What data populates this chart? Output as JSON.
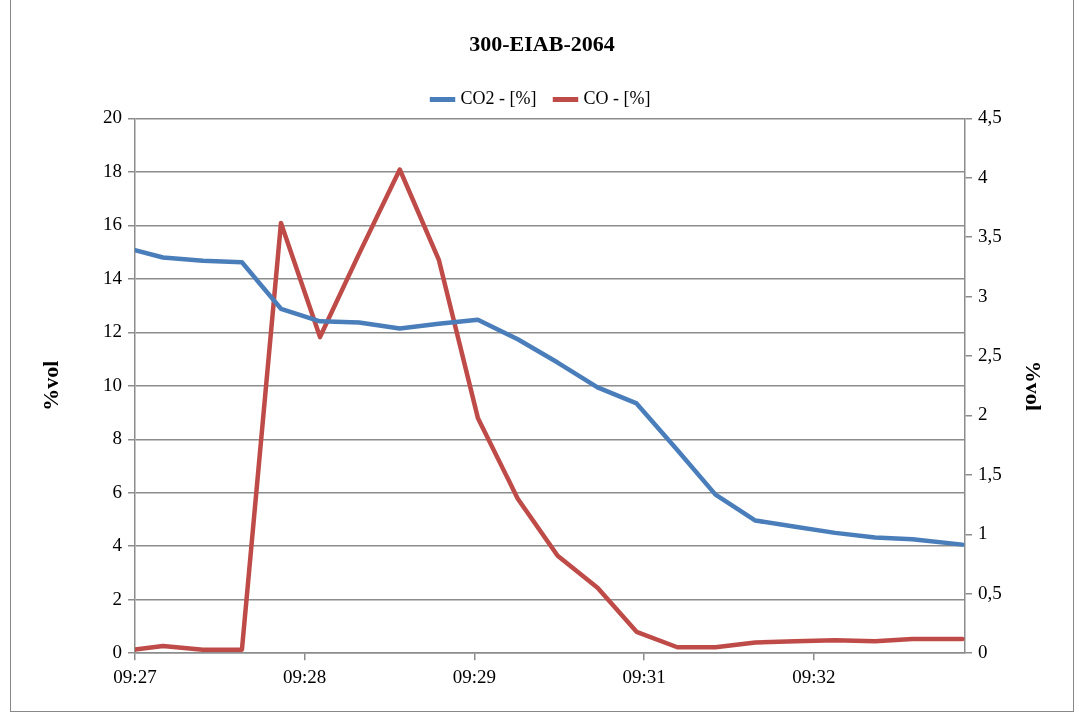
{
  "chart_data": {
    "type": "line",
    "title": "300-EIAB-2064",
    "ylabel": "%vol",
    "y2label": "%vol",
    "x": [
      9.45,
      9.4533,
      9.458,
      9.4626,
      9.4672,
      9.4718,
      9.4764,
      9.4812,
      9.4858,
      9.4904,
      9.4951,
      9.4998,
      9.5045,
      9.5091,
      9.5139,
      9.5184,
      9.5231,
      9.5278,
      9.5325,
      9.5372,
      9.5416,
      9.5475
    ],
    "series": [
      {
        "name": "CO2 - [%]",
        "color": "#4a7ebb",
        "values": [
          15.07,
          14.8,
          14.68,
          14.62,
          12.88,
          12.41,
          12.37,
          12.14,
          12.32,
          12.47,
          11.74,
          10.87,
          9.94,
          9.34,
          7.6,
          5.93,
          4.96,
          4.73,
          4.5,
          4.33,
          4.26,
          4.06
        ]
      },
      {
        "name": "CO - [%]",
        "color": "#be4b48",
        "axis": "y2",
        "values": [
          0.03,
          0.06,
          0.03,
          0.03,
          3.62,
          2.66,
          3.36,
          4.07,
          3.31,
          1.98,
          1.3,
          0.82,
          0.55,
          0.18,
          0.05,
          0.05,
          0.09,
          0.1,
          0.11,
          0.1,
          0.12,
          0.12
        ]
      }
    ],
    "xlim": [
      9.45,
      9.5478
    ],
    "xticks": [
      {
        "value": 9.45,
        "label": "09:27"
      },
      {
        "value": 9.47,
        "label": "09:28"
      },
      {
        "value": 9.49,
        "label": "09:29"
      },
      {
        "value": 9.51,
        "label": "09:31"
      },
      {
        "value": 9.53,
        "label": "09:32"
      }
    ],
    "ylim": [
      0,
      20
    ],
    "yticks": [
      0,
      2,
      4,
      6,
      8,
      10,
      12,
      14,
      16,
      18,
      20
    ],
    "y2lim": [
      0,
      4.5
    ],
    "y2ticks": [
      0,
      {
        "value": 0.5,
        "label": "0,5"
      },
      1,
      {
        "value": 1.5,
        "label": "1,5"
      },
      2,
      {
        "value": 2.5,
        "label": "2,5"
      },
      3,
      {
        "value": 3.5,
        "label": "3,5"
      },
      4,
      {
        "value": 4.5,
        "label": "4,5"
      }
    ],
    "grid": "y",
    "legend": "top",
    "marker": "none",
    "line_style": "solid"
  }
}
